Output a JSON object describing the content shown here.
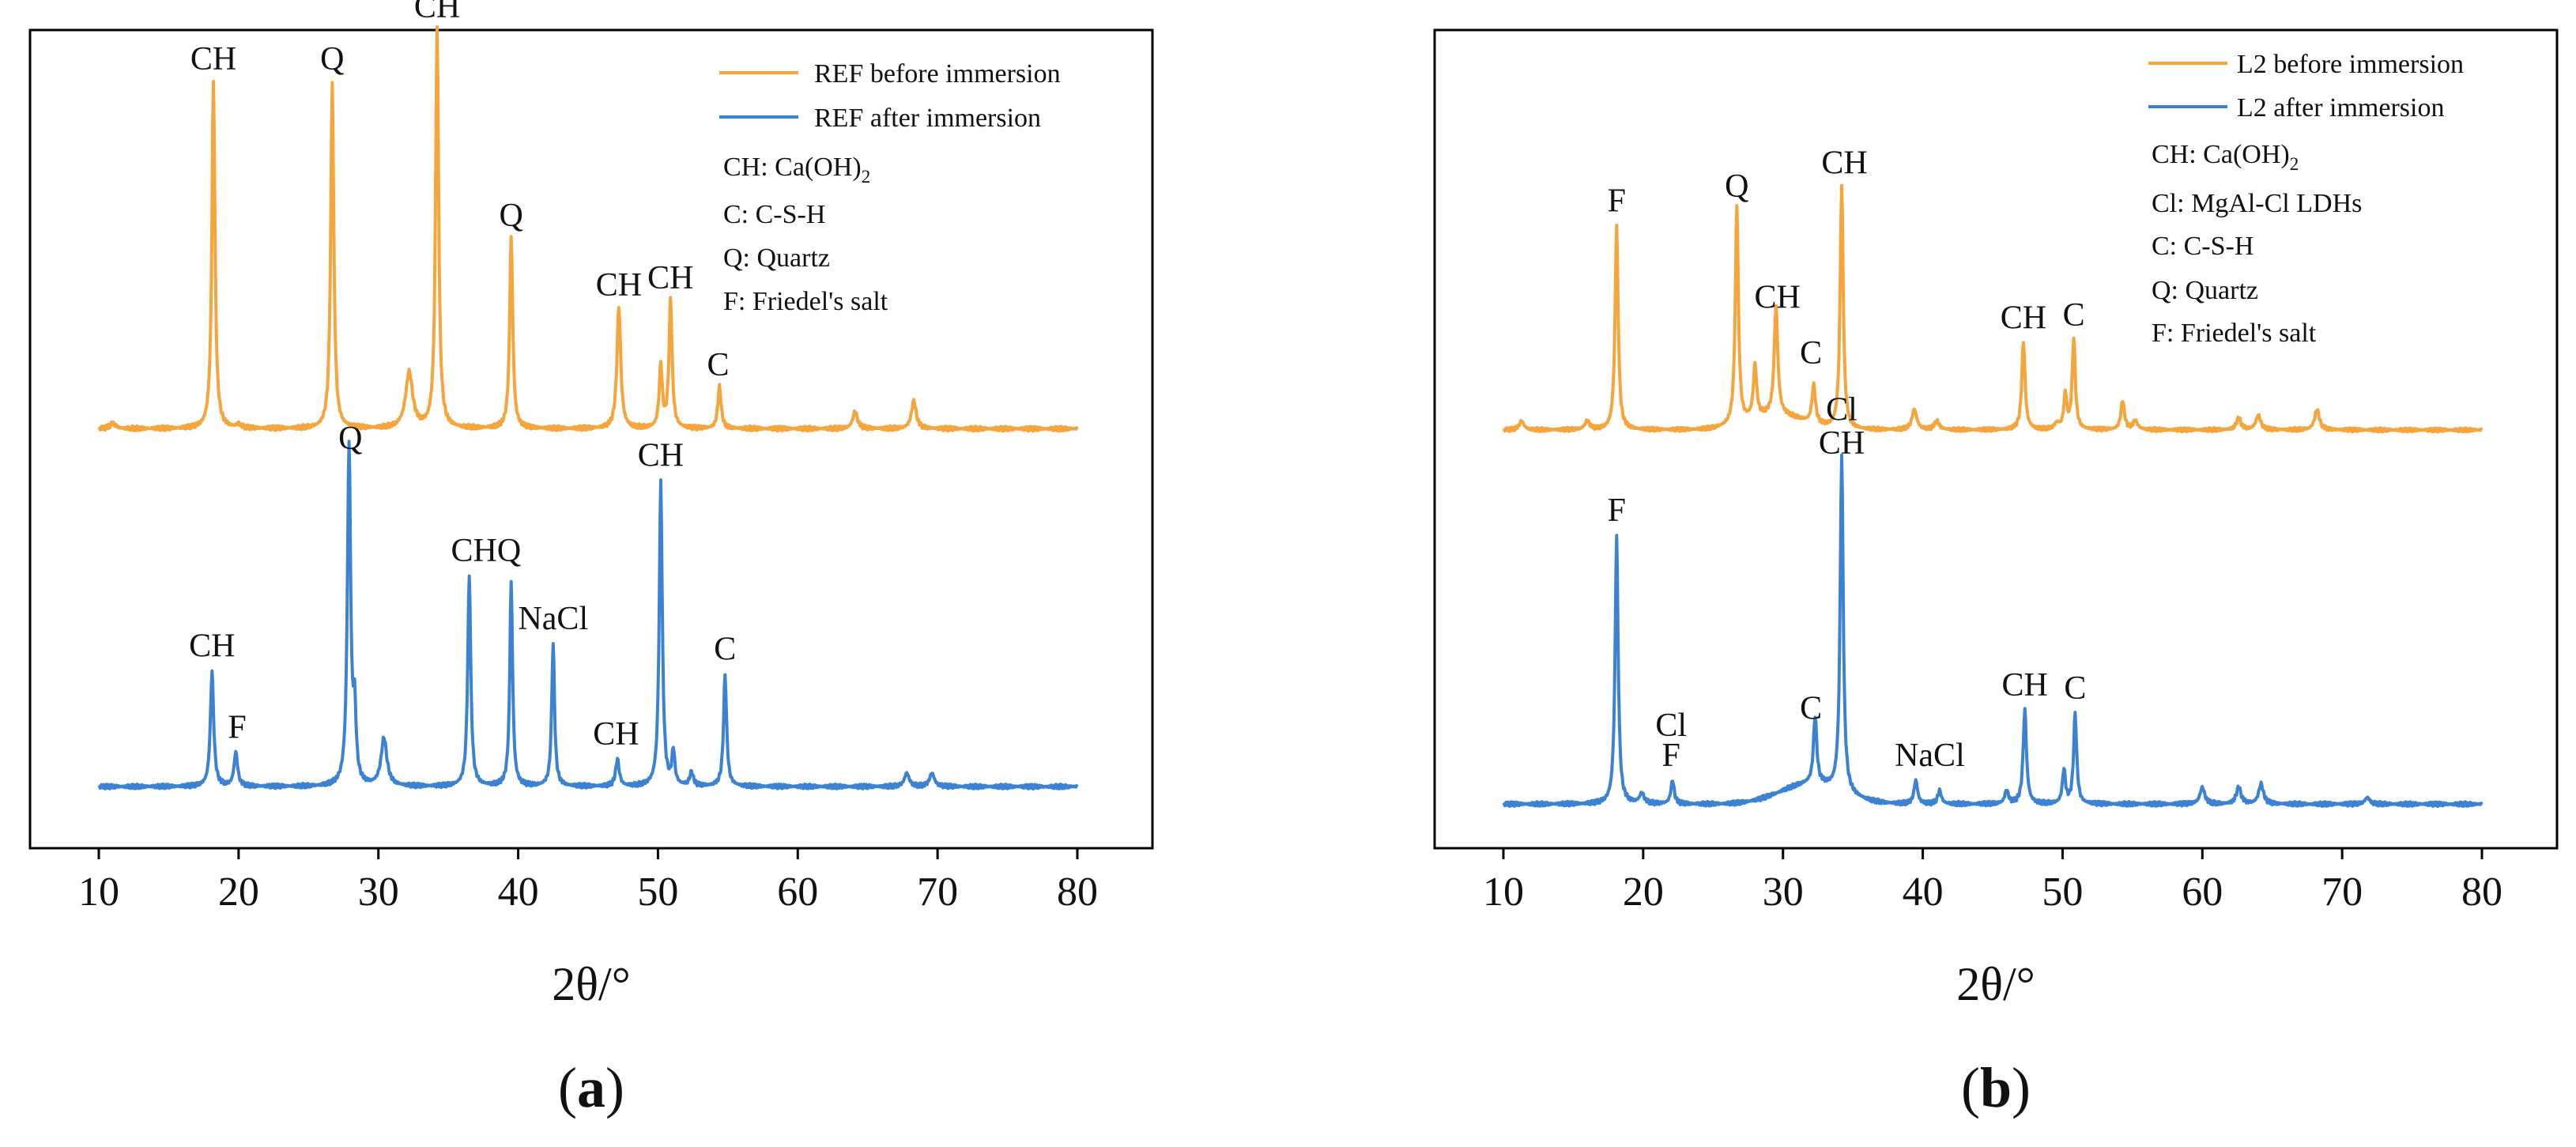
{
  "chart_data": [
    {
      "id": "a",
      "type": "line",
      "panel_label": "a",
      "xlabel": "2θ/°",
      "xlim": [
        10,
        80
      ],
      "xticks": [
        "10",
        "20",
        "30",
        "40",
        "50",
        "60",
        "70",
        "80"
      ],
      "legend_position": "top-right",
      "legend_notes": [
        {
          "text": "CH: Ca(OH)",
          "sub": "2"
        },
        {
          "text": "C: C-S-H"
        },
        {
          "text": "Q: Quartz"
        },
        {
          "text": "F: Friedel's salt"
        }
      ],
      "series": [
        {
          "name": "REF before immersion",
          "color": "#F5A53C",
          "baseline": 0.04,
          "peaks": [
            [
              11.0,
              0.015,
              0.25
            ],
            [
              18.2,
              1.0,
              0.13
            ],
            [
              20.0,
              0.01,
              0.2
            ],
            [
              26.7,
              1.0,
              0.13
            ],
            [
              32.2,
              0.16,
              0.3
            ],
            [
              34.2,
              1.15,
              0.13
            ],
            [
              39.5,
              0.55,
              0.13
            ],
            [
              47.2,
              0.35,
              0.16
            ],
            [
              50.2,
              0.18,
              0.13
            ],
            [
              50.9,
              0.37,
              0.13
            ],
            [
              54.4,
              0.12,
              0.14
            ],
            [
              64.1,
              0.05,
              0.2
            ],
            [
              68.3,
              0.08,
              0.2
            ]
          ],
          "peak_labels": [
            {
              "text": "CH",
              "x": 18.2,
              "y": 1.05
            },
            {
              "text": "Q",
              "x": 26.7,
              "y": 1.05
            },
            {
              "text": "CH",
              "x": 34.2,
              "y": 1.2
            },
            {
              "text": "Q",
              "x": 39.5,
              "y": 0.6
            },
            {
              "text": "CH",
              "x": 47.2,
              "y": 0.4
            },
            {
              "text": "CH",
              "x": 50.9,
              "y": 0.42
            },
            {
              "text": "C",
              "x": 54.3,
              "y": 0.17
            }
          ]
        },
        {
          "name": "REF after immersion",
          "color": "#3C82D2",
          "baseline": 0.03,
          "peaks": [
            [
              18.1,
              0.34,
              0.14
            ],
            [
              19.8,
              0.1,
              0.15
            ],
            [
              27.9,
              1.0,
              0.14
            ],
            [
              28.3,
              0.2,
              0.12
            ],
            [
              30.4,
              0.14,
              0.25
            ],
            [
              36.5,
              0.62,
              0.13
            ],
            [
              39.5,
              0.6,
              0.12
            ],
            [
              42.5,
              0.42,
              0.12
            ],
            [
              47.1,
              0.08,
              0.15
            ],
            [
              50.2,
              0.9,
              0.13
            ],
            [
              51.1,
              0.1,
              0.12
            ],
            [
              52.4,
              0.04,
              0.15
            ],
            [
              54.8,
              0.33,
              0.13
            ],
            [
              67.8,
              0.04,
              0.2
            ],
            [
              69.6,
              0.04,
              0.2
            ]
          ],
          "peak_labels": [
            {
              "text": "CH",
              "x": 18.1,
              "y": 0.39
            },
            {
              "text": "F",
              "x": 19.9,
              "y": 0.15
            },
            {
              "text": "Q",
              "x": 28.0,
              "y": 1.0
            },
            {
              "text": "CHQ",
              "x": 37.7,
              "y": 0.67
            },
            {
              "text": "NaCl",
              "x": 42.5,
              "y": 0.47
            },
            {
              "text": "CH",
              "x": 47.0,
              "y": 0.13
            },
            {
              "text": "CH",
              "x": 50.2,
              "y": 0.95
            },
            {
              "text": "C",
              "x": 54.8,
              "y": 0.38
            }
          ]
        }
      ]
    },
    {
      "id": "b",
      "type": "line",
      "panel_label": "b",
      "xlabel": "2θ/°",
      "xlim": [
        10,
        80
      ],
      "xticks": [
        "10",
        "20",
        "30",
        "40",
        "50",
        "60",
        "70",
        "80"
      ],
      "legend_position": "top-right",
      "legend_notes": [
        {
          "text": "CH: Ca(OH)",
          "sub": "2"
        },
        {
          "text": "Cl: MgAl-Cl LDHs"
        },
        {
          "text": "C: C-S-H"
        },
        {
          "text": "Q: Quartz"
        },
        {
          "text": "F: Friedel's salt"
        }
      ],
      "series": [
        {
          "name": "L2 before immersion",
          "color": "#F5A53C",
          "baseline": 0.03,
          "bump": [
            29.5,
            0.05,
            2.0
          ],
          "peaks": [
            [
              11.3,
              0.03,
              0.2
            ],
            [
              16.0,
              0.03,
              0.2
            ],
            [
              18.1,
              0.7,
              0.13
            ],
            [
              26.7,
              0.75,
              0.13
            ],
            [
              28.0,
              0.18,
              0.14
            ],
            [
              29.5,
              0.37,
              0.15
            ],
            [
              32.2,
              0.13,
              0.15
            ],
            [
              34.2,
              0.83,
              0.13
            ],
            [
              39.4,
              0.07,
              0.2
            ],
            [
              41.0,
              0.03,
              0.2
            ],
            [
              47.2,
              0.3,
              0.14
            ],
            [
              49.6,
              0.02,
              0.2
            ],
            [
              50.2,
              0.12,
              0.13
            ],
            [
              50.8,
              0.31,
              0.13
            ],
            [
              54.3,
              0.1,
              0.15
            ],
            [
              55.2,
              0.03,
              0.2
            ],
            [
              62.6,
              0.04,
              0.2
            ],
            [
              64.0,
              0.05,
              0.2
            ],
            [
              68.2,
              0.07,
              0.2
            ]
          ],
          "peak_labels": [
            {
              "text": "F",
              "x": 18.1,
              "y": 0.75
            },
            {
              "text": "Q",
              "x": 26.7,
              "y": 0.8
            },
            {
              "text": "CH",
              "x": 29.6,
              "y": 0.42
            },
            {
              "text": "C",
              "x": 32.0,
              "y": 0.23
            },
            {
              "text": "CH",
              "x": 34.4,
              "y": 0.88
            },
            {
              "text": "CH",
              "x": 47.2,
              "y": 0.35
            },
            {
              "text": "C",
              "x": 50.8,
              "y": 0.36
            }
          ]
        },
        {
          "name": "L2 after immersion",
          "color": "#3C82D2",
          "baseline": 0.03,
          "bump": [
            32.0,
            0.06,
            2.2
          ],
          "peaks": [
            [
              18.1,
              0.8,
              0.13
            ],
            [
              19.9,
              0.03,
              0.2
            ],
            [
              22.1,
              0.07,
              0.14
            ],
            [
              32.3,
              0.2,
              0.14
            ],
            [
              34.2,
              1.0,
              0.13
            ],
            [
              39.5,
              0.07,
              0.15
            ],
            [
              41.2,
              0.04,
              0.15
            ],
            [
              46.0,
              0.04,
              0.15
            ],
            [
              47.3,
              0.28,
              0.14
            ],
            [
              50.1,
              0.1,
              0.13
            ],
            [
              50.9,
              0.27,
              0.13
            ],
            [
              60.0,
              0.05,
              0.2
            ],
            [
              62.6,
              0.05,
              0.2
            ],
            [
              64.2,
              0.06,
              0.2
            ],
            [
              71.8,
              0.02,
              0.2
            ]
          ],
          "peak_labels": [
            {
              "text": "F",
              "x": 18.1,
              "y": 0.85
            },
            {
              "text": "Cl",
              "x": 22.0,
              "y": 0.21
            },
            {
              "text": "F",
              "x": 22.0,
              "y": 0.12
            },
            {
              "text": "C",
              "x": 32.0,
              "y": 0.26
            },
            {
              "text": "CH",
              "x": 34.2,
              "y": 1.05
            },
            {
              "text": "Cl",
              "x": 34.2,
              "y": 1.15
            },
            {
              "text": "NaCl",
              "x": 40.5,
              "y": 0.12
            },
            {
              "text": "CH",
              "x": 47.3,
              "y": 0.33
            },
            {
              "text": "C",
              "x": 50.9,
              "y": 0.32
            }
          ]
        }
      ]
    }
  ]
}
